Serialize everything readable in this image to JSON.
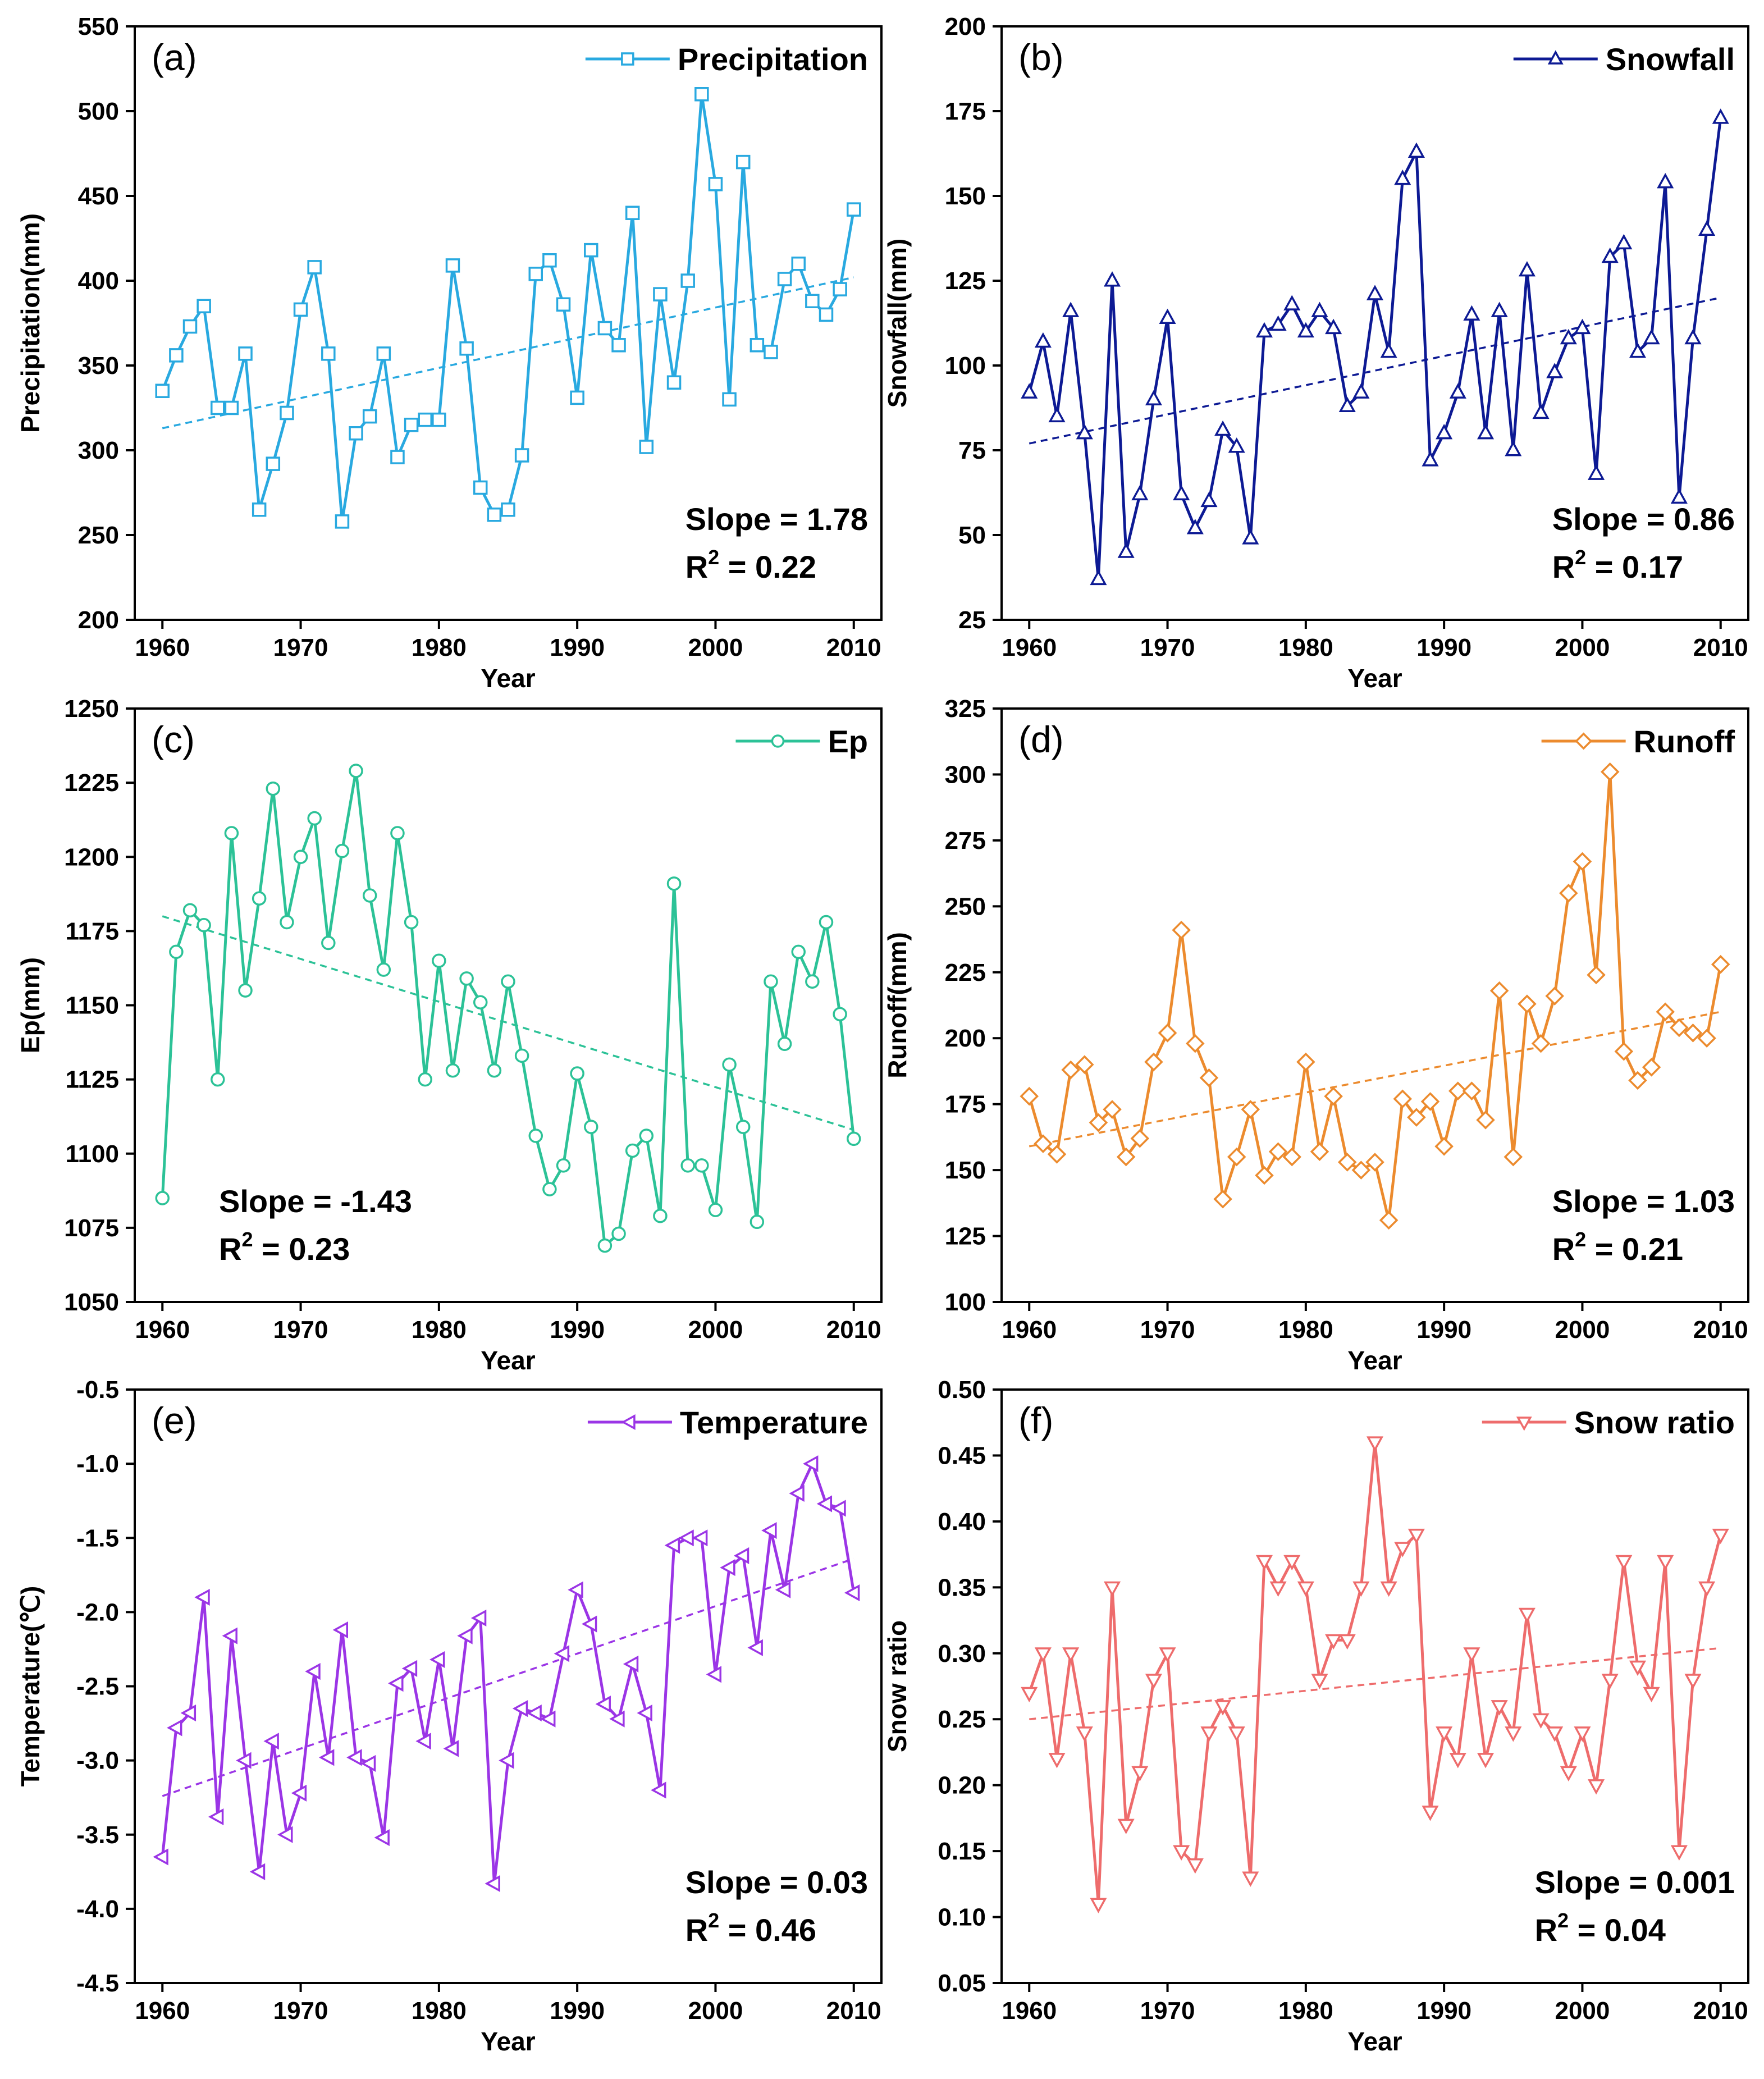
{
  "chart_data": [
    {
      "id": "a",
      "type": "line",
      "panel_label": "(a)",
      "legend": "Precipitation",
      "marker": "square",
      "color": "#29a9e0",
      "xlabel": "Year",
      "ylabel": "Precipitation(mm)",
      "xlim": [
        1958,
        2012
      ],
      "ylim": [
        200,
        550
      ],
      "xticks": [
        1960,
        1970,
        1980,
        1990,
        2000,
        2010
      ],
      "yticks": [
        200,
        250,
        300,
        350,
        400,
        450,
        500,
        550
      ],
      "ytick_labels": [
        "200",
        "250",
        "300",
        "350",
        "400",
        "450",
        "500",
        "550"
      ],
      "years": [
        1960,
        1961,
        1962,
        1963,
        1964,
        1965,
        1966,
        1967,
        1968,
        1969,
        1970,
        1971,
        1972,
        1973,
        1974,
        1975,
        1976,
        1977,
        1978,
        1979,
        1980,
        1981,
        1982,
        1983,
        1984,
        1985,
        1986,
        1987,
        1988,
        1989,
        1990,
        1991,
        1992,
        1993,
        1994,
        1995,
        1996,
        1997,
        1998,
        1999,
        2000,
        2001,
        2002,
        2003,
        2004,
        2005,
        2006,
        2007,
        2008,
        2009,
        2010
      ],
      "values": [
        335,
        356,
        373,
        385,
        325,
        325,
        357,
        265,
        292,
        322,
        383,
        408,
        357,
        258,
        310,
        320,
        357,
        296,
        315,
        318,
        318,
        409,
        360,
        278,
        262,
        265,
        297,
        404,
        412,
        386,
        331,
        418,
        372,
        362,
        440,
        302,
        392,
        340,
        400,
        510,
        457,
        330,
        470,
        362,
        358,
        401,
        410,
        388,
        380,
        395,
        442
      ],
      "trend": {
        "start": 313,
        "end": 402
      },
      "slope_text": "Slope = 1.78",
      "r2_value": "0.22",
      "stats_position": "bottom-right"
    },
    {
      "id": "b",
      "type": "line",
      "panel_label": "(b)",
      "legend": "Snowfall",
      "marker": "triangle-up",
      "color": "#0d1a94",
      "xlabel": "Year",
      "ylabel": "Snowfall(mm)",
      "xlim": [
        1958,
        2012
      ],
      "ylim": [
        25,
        200
      ],
      "xticks": [
        1960,
        1970,
        1980,
        1990,
        2000,
        2010
      ],
      "yticks": [
        25,
        50,
        75,
        100,
        125,
        150,
        175,
        200
      ],
      "ytick_labels": [
        "25",
        "50",
        "75",
        "100",
        "125",
        "150",
        "175",
        "200"
      ],
      "years": [
        1960,
        1961,
        1962,
        1963,
        1964,
        1965,
        1966,
        1967,
        1968,
        1969,
        1970,
        1971,
        1972,
        1973,
        1974,
        1975,
        1976,
        1977,
        1978,
        1979,
        1980,
        1981,
        1982,
        1983,
        1984,
        1985,
        1986,
        1987,
        1988,
        1989,
        1990,
        1991,
        1992,
        1993,
        1994,
        1995,
        1996,
        1997,
        1998,
        1999,
        2000,
        2001,
        2002,
        2003,
        2004,
        2005,
        2006,
        2007,
        2008,
        2009,
        2010
      ],
      "values": [
        92,
        107,
        85,
        116,
        80,
        37,
        125,
        45,
        62,
        90,
        114,
        62,
        52,
        60,
        81,
        76,
        49,
        110,
        112,
        118,
        110,
        116,
        111,
        88,
        92,
        121,
        104,
        155,
        163,
        72,
        80,
        92,
        115,
        80,
        116,
        75,
        128,
        86,
        98,
        108,
        111,
        68,
        132,
        136,
        104,
        108,
        154,
        61,
        108,
        140,
        173
      ],
      "trend": {
        "start": 77,
        "end": 120
      },
      "slope_text": "Slope = 0.86",
      "r2_value": "0.17",
      "stats_position": "bottom-right"
    },
    {
      "id": "c",
      "type": "line",
      "panel_label": "(c)",
      "legend": "Ep",
      "marker": "circle",
      "color": "#2cc297",
      "xlabel": "Year",
      "ylabel": "Ep(mm)",
      "xlim": [
        1958,
        2012
      ],
      "ylim": [
        1050,
        1250
      ],
      "xticks": [
        1960,
        1970,
        1980,
        1990,
        2000,
        2010
      ],
      "yticks": [
        1050,
        1075,
        1100,
        1125,
        1150,
        1175,
        1200,
        1225,
        1250
      ],
      "ytick_labels": [
        "1050",
        "1075",
        "1100",
        "1125",
        "1150",
        "1175",
        "1200",
        "1225",
        "1250"
      ],
      "years": [
        1960,
        1961,
        1962,
        1963,
        1964,
        1965,
        1966,
        1967,
        1968,
        1969,
        1970,
        1971,
        1972,
        1973,
        1974,
        1975,
        1976,
        1977,
        1978,
        1979,
        1980,
        1981,
        1982,
        1983,
        1984,
        1985,
        1986,
        1987,
        1988,
        1989,
        1990,
        1991,
        1992,
        1993,
        1994,
        1995,
        1996,
        1997,
        1998,
        1999,
        2000,
        2001,
        2002,
        2003,
        2004,
        2005,
        2006,
        2007,
        2008,
        2009,
        2010
      ],
      "values": [
        1085,
        1168,
        1182,
        1177,
        1125,
        1208,
        1155,
        1186,
        1223,
        1178,
        1200,
        1213,
        1171,
        1202,
        1229,
        1187,
        1162,
        1208,
        1178,
        1125,
        1165,
        1128,
        1159,
        1151,
        1128,
        1158,
        1133,
        1106,
        1088,
        1096,
        1127,
        1109,
        1069,
        1073,
        1101,
        1106,
        1079,
        1191,
        1096,
        1096,
        1081,
        1130,
        1109,
        1077,
        1158,
        1137,
        1168,
        1158,
        1178,
        1147,
        1105
      ],
      "trend": {
        "start": 1180,
        "end": 1108
      },
      "slope_text": "Slope = -1.43",
      "r2_value": "0.23",
      "stats_position": "bottom-left"
    },
    {
      "id": "d",
      "type": "line",
      "panel_label": "(d)",
      "legend": "Runoff",
      "marker": "diamond",
      "color": "#ec8b2e",
      "xlabel": "Year",
      "ylabel": "Runoff(mm)",
      "xlim": [
        1958,
        2012
      ],
      "ylim": [
        100,
        325
      ],
      "xticks": [
        1960,
        1970,
        1980,
        1990,
        2000,
        2010
      ],
      "yticks": [
        100,
        125,
        150,
        175,
        200,
        225,
        250,
        275,
        300,
        325
      ],
      "ytick_labels": [
        "100",
        "125",
        "150",
        "175",
        "200",
        "225",
        "250",
        "275",
        "300",
        "325"
      ],
      "years": [
        1960,
        1961,
        1962,
        1963,
        1964,
        1965,
        1966,
        1967,
        1968,
        1969,
        1970,
        1971,
        1972,
        1973,
        1974,
        1975,
        1976,
        1977,
        1978,
        1979,
        1980,
        1981,
        1982,
        1983,
        1984,
        1985,
        1986,
        1987,
        1988,
        1989,
        1990,
        1991,
        1992,
        1993,
        1994,
        1995,
        1996,
        1997,
        1998,
        1999,
        2000,
        2001,
        2002,
        2003,
        2004,
        2005,
        2006,
        2007,
        2008,
        2009,
        2010
      ],
      "values": [
        178,
        160,
        156,
        188,
        190,
        168,
        173,
        155,
        162,
        191,
        202,
        241,
        198,
        185,
        139,
        155,
        173,
        148,
        157,
        155,
        191,
        157,
        178,
        153,
        150,
        153,
        131,
        177,
        170,
        176,
        159,
        180,
        180,
        169,
        218,
        155,
        213,
        198,
        216,
        255,
        267,
        224,
        301,
        195,
        184,
        189,
        210,
        204,
        202,
        200,
        228
      ],
      "trend": {
        "start": 159,
        "end": 210
      },
      "slope_text": "Slope = 1.03",
      "r2_value": "0.21",
      "stats_position": "bottom-right"
    },
    {
      "id": "e",
      "type": "line",
      "panel_label": "(e)",
      "legend": "Temperature",
      "marker": "triangle-left",
      "color": "#9b35e6",
      "xlabel": "Year",
      "ylabel": "Temperature(℃)",
      "xlim": [
        1958,
        2012
      ],
      "ylim": [
        -4.5,
        -0.5
      ],
      "xticks": [
        1960,
        1970,
        1980,
        1990,
        2000,
        2010
      ],
      "yticks": [
        -4.5,
        -4.0,
        -3.5,
        -3.0,
        -2.5,
        -2.0,
        -1.5,
        -1.0,
        -0.5
      ],
      "ytick_labels": [
        "-4.5",
        "-4.0",
        "-3.5",
        "-3.0",
        "-2.5",
        "-2.0",
        "-1.5",
        "-1.0",
        "-0.5"
      ],
      "years": [
        1960,
        1961,
        1962,
        1963,
        1964,
        1965,
        1966,
        1967,
        1968,
        1969,
        1970,
        1971,
        1972,
        1973,
        1974,
        1975,
        1976,
        1977,
        1978,
        1979,
        1980,
        1981,
        1982,
        1983,
        1984,
        1985,
        1986,
        1987,
        1988,
        1989,
        1990,
        1991,
        1992,
        1993,
        1994,
        1995,
        1996,
        1997,
        1998,
        1999,
        2000,
        2001,
        2002,
        2003,
        2004,
        2005,
        2006,
        2007,
        2008,
        2009,
        2010
      ],
      "values": [
        -3.65,
        -2.78,
        -2.68,
        -1.9,
        -3.38,
        -2.16,
        -3.0,
        -3.75,
        -2.87,
        -3.5,
        -3.22,
        -2.4,
        -2.98,
        -2.12,
        -2.98,
        -3.02,
        -3.52,
        -2.48,
        -2.38,
        -2.87,
        -2.32,
        -2.92,
        -2.16,
        -2.04,
        -3.83,
        -3.0,
        -2.65,
        -2.68,
        -2.72,
        -2.28,
        -1.85,
        -2.08,
        -2.62,
        -2.72,
        -2.35,
        -2.68,
        -3.2,
        -1.55,
        -1.5,
        -1.5,
        -2.42,
        -1.7,
        -1.62,
        -2.24,
        -1.45,
        -1.85,
        -1.2,
        -1.0,
        -1.27,
        -1.3,
        -1.87
      ],
      "trend": {
        "start": -3.24,
        "end": -1.64
      },
      "slope_text": "Slope = 0.03",
      "r2_value": "0.46",
      "stats_position": "bottom-right"
    },
    {
      "id": "f",
      "type": "line",
      "panel_label": "(f)",
      "legend": "Snow ratio",
      "marker": "triangle-down",
      "color": "#ee6c6c",
      "xlabel": "Year",
      "ylabel": "Snow ratio",
      "xlim": [
        1958,
        2012
      ],
      "ylim": [
        0.05,
        0.5
      ],
      "xticks": [
        1960,
        1970,
        1980,
        1990,
        2000,
        2010
      ],
      "yticks": [
        0.05,
        0.1,
        0.15,
        0.2,
        0.25,
        0.3,
        0.35,
        0.4,
        0.45,
        0.5
      ],
      "ytick_labels": [
        "0.05",
        "0.10",
        "0.15",
        "0.20",
        "0.25",
        "0.30",
        "0.35",
        "0.40",
        "0.45",
        "0.50"
      ],
      "years": [
        1960,
        1961,
        1962,
        1963,
        1964,
        1965,
        1966,
        1967,
        1968,
        1969,
        1970,
        1971,
        1972,
        1973,
        1974,
        1975,
        1976,
        1977,
        1978,
        1979,
        1980,
        1981,
        1982,
        1983,
        1984,
        1985,
        1986,
        1987,
        1988,
        1989,
        1990,
        1991,
        1992,
        1993,
        1994,
        1995,
        1996,
        1997,
        1998,
        1999,
        2000,
        2001,
        2002,
        2003,
        2004,
        2005,
        2006,
        2007,
        2008,
        2009,
        2010
      ],
      "values": [
        0.27,
        0.3,
        0.22,
        0.3,
        0.24,
        0.11,
        0.35,
        0.17,
        0.21,
        0.28,
        0.3,
        0.15,
        0.14,
        0.24,
        0.26,
        0.24,
        0.13,
        0.37,
        0.35,
        0.37,
        0.35,
        0.28,
        0.31,
        0.31,
        0.35,
        0.46,
        0.35,
        0.38,
        0.39,
        0.18,
        0.24,
        0.22,
        0.3,
        0.22,
        0.26,
        0.24,
        0.33,
        0.25,
        0.24,
        0.21,
        0.24,
        0.2,
        0.28,
        0.37,
        0.29,
        0.27,
        0.37,
        0.15,
        0.28,
        0.35,
        0.39
      ],
      "trend": {
        "start": 0.25,
        "end": 0.304
      },
      "slope_text": "Slope = 0.001",
      "r2_value": "0.04",
      "stats_position": "bottom-right"
    }
  ]
}
